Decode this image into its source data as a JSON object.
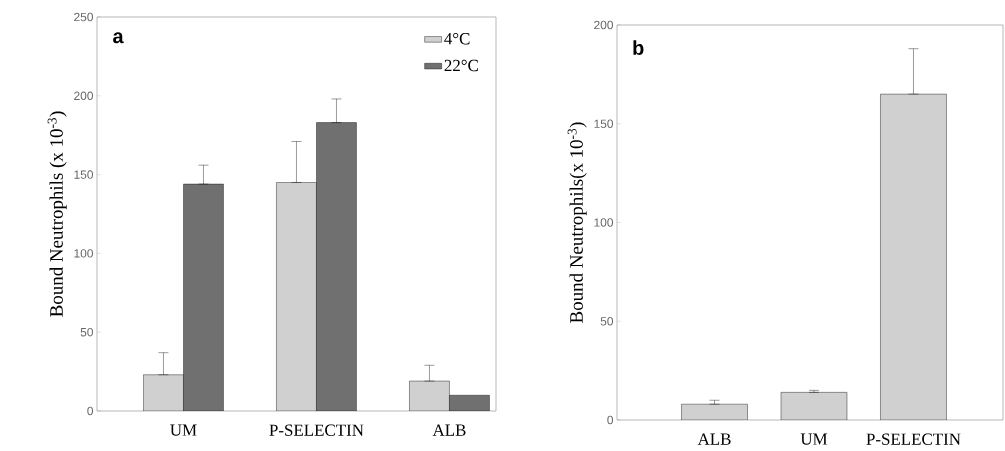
{
  "chart_data": [
    {
      "type": "bar",
      "ylabel": "Bound Neutrophils (x 10$^{-3}$)",
      "annotations": [
        "a"
      ],
      "categories": [
        "UM",
        "P-SELECTIN",
        "ALB"
      ],
      "ylim": [
        0,
        250
      ],
      "yticks": [
        0,
        50,
        100,
        150,
        200,
        250
      ],
      "legend": "top right",
      "series": [
        {
          "name": "4°C",
          "color": "#d0d0d0",
          "values": [
            23,
            145,
            19
          ],
          "errors": [
            [
              23,
              37
            ],
            [
              145,
              171
            ],
            [
              19,
              29
            ]
          ]
        },
        {
          "name": "22°C",
          "color": "#707070",
          "values": [
            144,
            183,
            10
          ],
          "errors": [
            [
              144,
              156
            ],
            [
              183,
              198
            ],
            null
          ]
        }
      ]
    },
    {
      "type": "bar",
      "ylabel": "Bound Neutrophils(x 10$^{-3}$)",
      "annotations": [
        "b"
      ],
      "categories": [
        "ALB",
        "UM",
        "P-SELECTIN"
      ],
      "ylim": [
        0,
        200
      ],
      "yticks": [
        0,
        50,
        100,
        150,
        200
      ],
      "series": [
        {
          "color": "#d0d0d0",
          "values": [
            8,
            14,
            165
          ],
          "errors": [
            [
              8,
              10
            ],
            [
              14,
              15
            ],
            [
              165,
              188
            ]
          ]
        }
      ]
    }
  ]
}
